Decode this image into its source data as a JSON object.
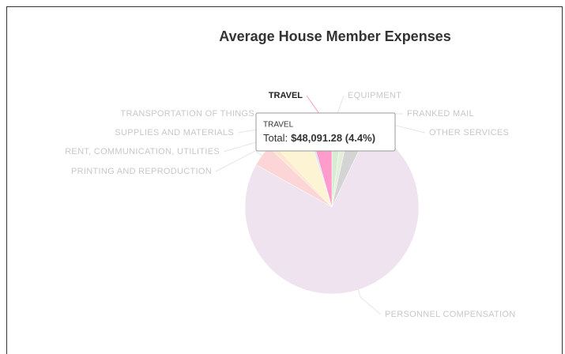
{
  "chart_data": {
    "type": "pie",
    "title": "Average House Member Expenses",
    "categories": [
      "EQUIPMENT",
      "FRANKED MAIL",
      "OTHER SERVICES",
      "PERSONNEL COMPENSATION",
      "PRINTING AND REPRODUCTION",
      "RENT, COMMUNICATION, UTILITIES",
      "SUPPLIES AND MATERIALS",
      "TRANSPORTATION OF THINGS",
      "TRAVEL"
    ],
    "values": [
      21900,
      16400,
      39300,
      830700,
      43700,
      10900,
      76500,
      5500,
      48091.28
    ],
    "value_labels": [
      null,
      null,
      null,
      null,
      null,
      null,
      null,
      null,
      "$48,091.28 (4.4%)"
    ],
    "colors": [
      "#d7ecd2",
      "#e3efd9",
      "#d4d4d4",
      "#efe3f0",
      "#fcd6d6",
      "#fde8cf",
      "#fcf4d2",
      "#d8e4f5",
      "#ff9ccc"
    ],
    "highlight": 8,
    "tooltip": {
      "total_label": "Total:"
    }
  }
}
